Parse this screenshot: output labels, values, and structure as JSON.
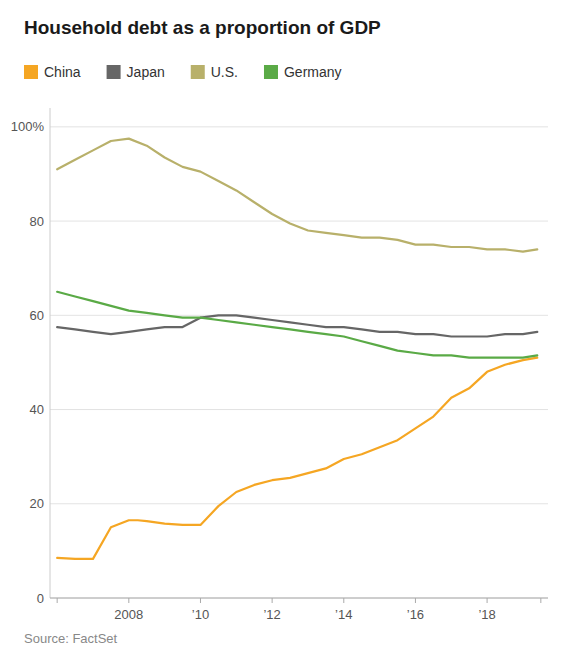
{
  "chart_data": {
    "type": "line",
    "title": "Household debt as a proportion of GDP",
    "source": "Source: FactSet",
    "series": [
      {
        "name": "China",
        "color": "#f5a623",
        "x": [
          2006,
          2006.5,
          2007,
          2007.5,
          2008,
          2008.25,
          2008.5,
          2009,
          2009.5,
          2010,
          2010.5,
          2011,
          2011.5,
          2012,
          2012.5,
          2013,
          2013.5,
          2014,
          2014.5,
          2015,
          2015.5,
          2016,
          2016.5,
          2017,
          2017.5,
          2018,
          2018.5,
          2019,
          2019.4
        ],
        "values": [
          8.5,
          8.3,
          8.3,
          15.0,
          16.5,
          16.5,
          16.3,
          15.8,
          15.5,
          15.5,
          19.5,
          22.5,
          24.0,
          25.0,
          25.5,
          26.5,
          27.5,
          29.5,
          30.5,
          32.0,
          33.5,
          36.0,
          38.5,
          42.5,
          44.5,
          48.0,
          49.5,
          50.5,
          51.0
        ]
      },
      {
        "name": "Japan",
        "color": "#666666",
        "x": [
          2006,
          2006.5,
          2007,
          2007.5,
          2008,
          2008.5,
          2009,
          2009.5,
          2010,
          2010.5,
          2011,
          2011.5,
          2012,
          2012.5,
          2013,
          2013.5,
          2014,
          2014.5,
          2015,
          2015.5,
          2016,
          2016.5,
          2017,
          2017.5,
          2018,
          2018.5,
          2019,
          2019.4
        ],
        "values": [
          57.5,
          57.0,
          56.5,
          56.0,
          56.5,
          57.0,
          57.5,
          57.5,
          59.5,
          60.0,
          60.0,
          59.5,
          59.0,
          58.5,
          58.0,
          57.5,
          57.5,
          57.0,
          56.5,
          56.5,
          56.0,
          56.0,
          55.5,
          55.5,
          55.5,
          56.0,
          56.0,
          56.5
        ]
      },
      {
        "name": "U.S.",
        "color": "#b8b06a",
        "x": [
          2006,
          2006.5,
          2007,
          2007.5,
          2008,
          2008.5,
          2009,
          2009.5,
          2010,
          2010.5,
          2011,
          2011.5,
          2012,
          2012.5,
          2013,
          2013.5,
          2014,
          2014.5,
          2015,
          2015.5,
          2016,
          2016.5,
          2017,
          2017.5,
          2018,
          2018.5,
          2019,
          2019.4
        ],
        "values": [
          91.0,
          93.0,
          95.0,
          97.0,
          97.5,
          96.0,
          93.5,
          91.5,
          90.5,
          88.5,
          86.5,
          84.0,
          81.5,
          79.5,
          78.0,
          77.5,
          77.0,
          76.5,
          76.5,
          76.0,
          75.0,
          75.0,
          74.5,
          74.5,
          74.0,
          74.0,
          73.5,
          74.0
        ]
      },
      {
        "name": "Germany",
        "color": "#5aaa46",
        "x": [
          2006,
          2006.5,
          2007,
          2007.5,
          2008,
          2008.5,
          2009,
          2009.5,
          2010,
          2010.5,
          2011,
          2011.5,
          2012,
          2012.5,
          2013,
          2013.5,
          2014,
          2014.5,
          2015,
          2015.5,
          2016,
          2016.5,
          2017,
          2017.5,
          2018,
          2018.5,
          2019,
          2019.4
        ],
        "values": [
          65.0,
          64.0,
          63.0,
          62.0,
          61.0,
          60.5,
          60.0,
          59.5,
          59.5,
          59.0,
          58.5,
          58.0,
          57.5,
          57.0,
          56.5,
          56.0,
          55.5,
          54.5,
          53.5,
          52.5,
          52.0,
          51.5,
          51.5,
          51.0,
          51.0,
          51.0,
          51.0,
          51.5
        ]
      }
    ],
    "xlim": [
      2005.8,
      2019.7
    ],
    "xticks": [
      {
        "value": 2006,
        "label": null
      },
      2008,
      {
        "value": 2010,
        "label": "’10"
      },
      {
        "value": 2012,
        "label": "’12"
      },
      {
        "value": 2014,
        "label": "’14"
      },
      {
        "value": 2016,
        "label": "’16"
      },
      {
        "value": 2018,
        "label": "’18"
      },
      {
        "value": 2019.5,
        "label": null
      }
    ],
    "ylim": [
      0,
      104
    ],
    "yticks": [
      0,
      20,
      40,
      60,
      80,
      {
        "value": 100,
        "label": "100%"
      }
    ],
    "grid": true,
    "legend": "top"
  }
}
